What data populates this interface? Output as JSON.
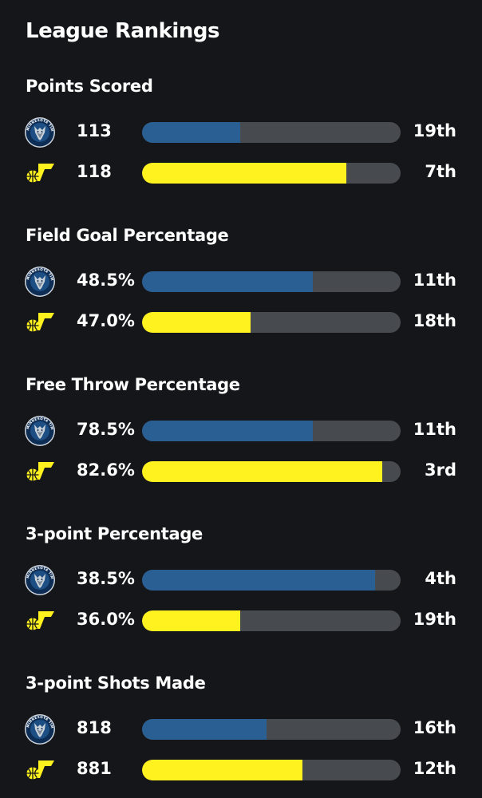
{
  "page_title": "League Rankings",
  "colors": {
    "background": "#141619",
    "bar_track": "#474b50",
    "wolves_fill": "#2a5f94",
    "jazz_fill": "#fff21f"
  },
  "teams": {
    "wolves": {
      "logo_icon": "timberwolves-logo-icon",
      "logo_text": "MINNESOTA TIMBERWOLVES"
    },
    "jazz": {
      "logo_icon": "jazz-logo-icon"
    }
  },
  "sections": [
    {
      "title": "Points Scored",
      "rows": [
        {
          "team": "wolves",
          "value": "113",
          "rank": "19th",
          "fill": 0.38
        },
        {
          "team": "jazz",
          "value": "118",
          "rank": "7th",
          "fill": 0.79
        }
      ]
    },
    {
      "title": "Field Goal Percentage",
      "rows": [
        {
          "team": "wolves",
          "value": "48.5%",
          "rank": "11th",
          "fill": 0.66
        },
        {
          "team": "jazz",
          "value": "47.0%",
          "rank": "18th",
          "fill": 0.42
        }
      ]
    },
    {
      "title": "Free Throw Percentage",
      "rows": [
        {
          "team": "wolves",
          "value": "78.5%",
          "rank": "11th",
          "fill": 0.66
        },
        {
          "team": "jazz",
          "value": "82.6%",
          "rank": "3rd",
          "fill": 0.93
        }
      ]
    },
    {
      "title": "3-point Percentage",
      "rows": [
        {
          "team": "wolves",
          "value": "38.5%",
          "rank": "4th",
          "fill": 0.9
        },
        {
          "team": "jazz",
          "value": "36.0%",
          "rank": "19th",
          "fill": 0.38
        }
      ]
    },
    {
      "title": "3-point Shots Made",
      "rows": [
        {
          "team": "wolves",
          "value": "818",
          "rank": "16th",
          "fill": 0.48
        },
        {
          "team": "jazz",
          "value": "881",
          "rank": "12th",
          "fill": 0.62
        }
      ]
    }
  ]
}
